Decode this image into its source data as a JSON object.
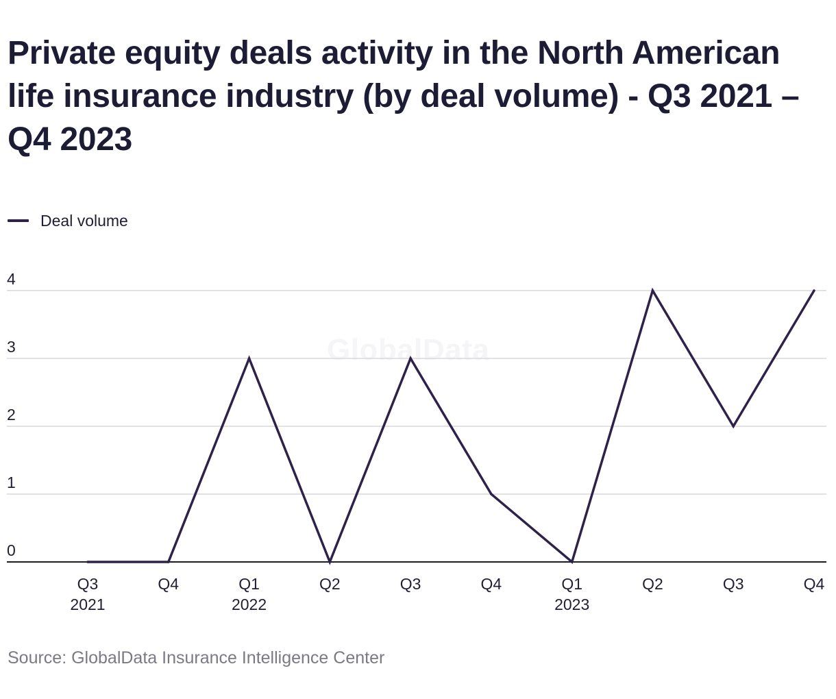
{
  "chart_data": {
    "type": "line",
    "title": "Private equity deals activity in the North American life insurance industry (by deal volume) - Q3 2021 – Q4 2023",
    "xlabel": "",
    "ylabel": "",
    "categories": [
      [
        "Q3",
        "2021"
      ],
      [
        "Q4",
        ""
      ],
      [
        "Q1",
        "2022"
      ],
      [
        "Q2",
        ""
      ],
      [
        "Q3",
        ""
      ],
      [
        "Q4",
        ""
      ],
      [
        "Q1",
        "2023"
      ],
      [
        "Q2",
        ""
      ],
      [
        "Q3",
        ""
      ],
      [
        "Q4",
        ""
      ]
    ],
    "series": [
      {
        "name": "Deal volume",
        "values": [
          0,
          0,
          3,
          0,
          3,
          1,
          0,
          4,
          2,
          4
        ],
        "color": "#2f2249"
      }
    ],
    "yticks": [
      0,
      1,
      2,
      3,
      4
    ],
    "ylim": [
      0,
      4
    ],
    "grid": true,
    "legend_position": "top-left"
  },
  "watermark": "GlobalData",
  "source": "Source: GlobalData Insurance Intelligence Center"
}
